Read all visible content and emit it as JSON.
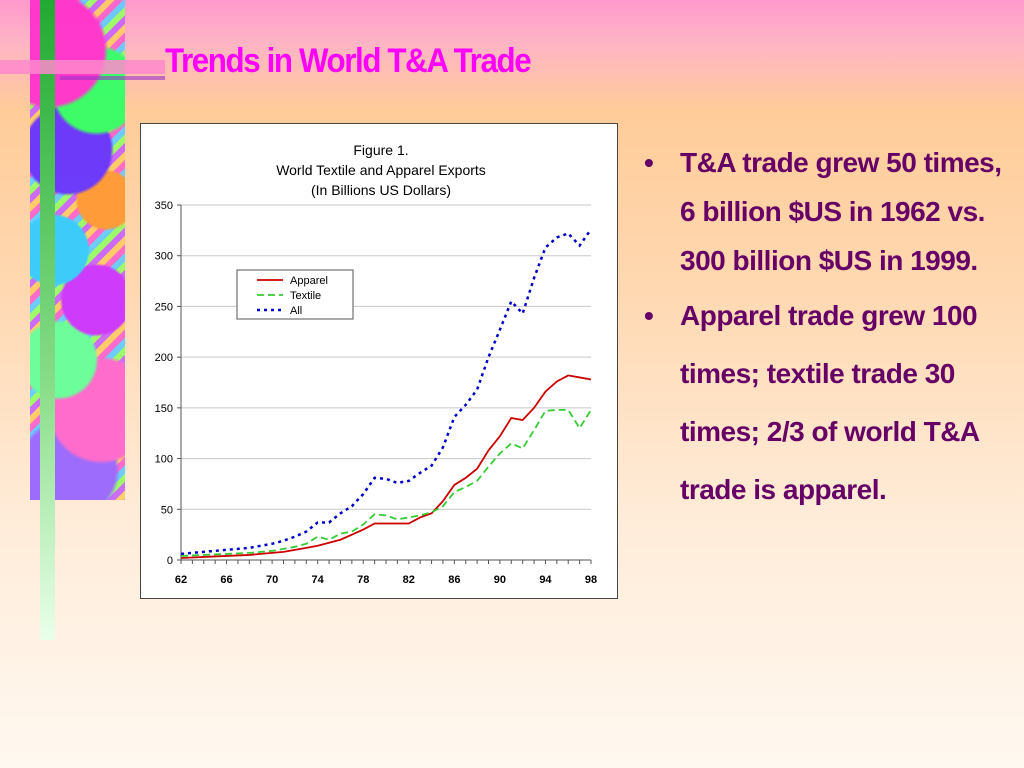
{
  "slide": {
    "title": "Trends in World T&A Trade",
    "bullets": [
      "T&A trade grew 50 times, 6 billion $US in 1962 vs. 300 billion $US in 1999.",
      "Apparel trade grew 100 times; textile trade 30 times; 2/3 of world T&A trade is apparel."
    ],
    "bullet_glyph": "•",
    "colors": {
      "title": "#ff00ff",
      "bullet_text": "#660066"
    }
  },
  "chart_data": {
    "type": "line",
    "title": "Figure 1.",
    "subtitle": "World Textile and Apparel Exports",
    "note": "(In Billions US Dollars)",
    "xlabel": "",
    "ylabel": "",
    "x": [
      62,
      63,
      64,
      65,
      66,
      67,
      68,
      69,
      70,
      71,
      72,
      73,
      74,
      75,
      76,
      77,
      78,
      79,
      80,
      81,
      82,
      83,
      84,
      85,
      86,
      87,
      88,
      89,
      90,
      91,
      92,
      93,
      94,
      95,
      96,
      97,
      98
    ],
    "x_tick_labels": [
      "62",
      "66",
      "70",
      "74",
      "78",
      "82",
      "86",
      "90",
      "94",
      "98"
    ],
    "y_ticks": [
      0,
      50,
      100,
      150,
      200,
      250,
      300,
      350
    ],
    "ylim": [
      0,
      350
    ],
    "xlim": [
      62,
      98
    ],
    "grid": true,
    "legend_position": "top-left inside plot",
    "series": [
      {
        "name": "Apparel",
        "color": "#cc0000",
        "style": "solid",
        "values": [
          2,
          2.5,
          3,
          3.5,
          4,
          4.5,
          5,
          6,
          7,
          8,
          10,
          12,
          14,
          17,
          20,
          25,
          30,
          36,
          36,
          36,
          36,
          42,
          46,
          58,
          74,
          81,
          90,
          108,
          122,
          140,
          138,
          150,
          166,
          176,
          182,
          180,
          178
        ]
      },
      {
        "name": "Textile",
        "color": "#33cc33",
        "style": "dashed",
        "values": [
          4,
          4.5,
          5,
          5.5,
          6,
          6.5,
          7,
          8,
          9,
          11,
          13,
          16,
          23,
          20,
          26,
          28,
          35,
          45,
          44,
          40,
          42,
          44,
          47,
          53,
          67,
          72,
          78,
          92,
          105,
          115,
          110,
          128,
          147,
          148,
          148,
          130,
          148
        ]
      },
      {
        "name": "All",
        "color": "#0000cc",
        "style": "dotted",
        "values": [
          6,
          7,
          8,
          9,
          10,
          11,
          12,
          14,
          16,
          19,
          23,
          28,
          37,
          37,
          46,
          53,
          65,
          81,
          80,
          76,
          78,
          86,
          93,
          111,
          141,
          153,
          168,
          200,
          227,
          255,
          243,
          278,
          308,
          318,
          322,
          310,
          326
        ]
      }
    ]
  }
}
